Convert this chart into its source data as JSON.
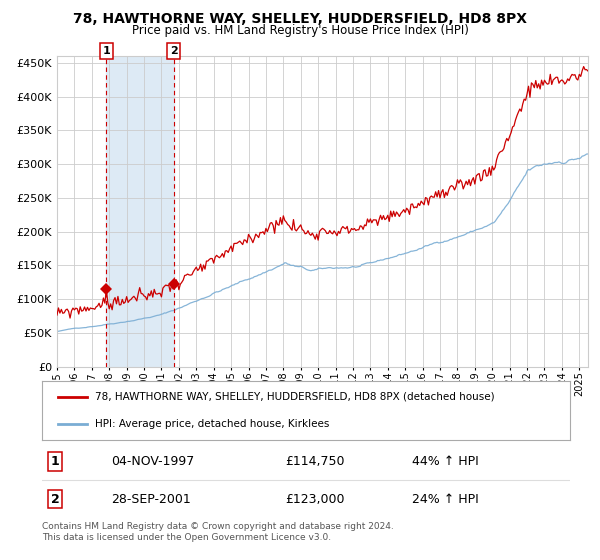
{
  "title": "78, HAWTHORNE WAY, SHELLEY, HUDDERSFIELD, HD8 8PX",
  "subtitle": "Price paid vs. HM Land Registry's House Price Index (HPI)",
  "legend_line1": "78, HAWTHORNE WAY, SHELLEY, HUDDERSFIELD, HD8 8PX (detached house)",
  "legend_line2": "HPI: Average price, detached house, Kirklees",
  "sale1_date": "04-NOV-1997",
  "sale1_price": 114750,
  "sale1_hpi": "44% ↑ HPI",
  "sale2_date": "28-SEP-2001",
  "sale2_price": 123000,
  "sale2_hpi": "24% ↑ HPI",
  "footer_line1": "Contains HM Land Registry data © Crown copyright and database right 2024.",
  "footer_line2": "This data is licensed under the Open Government Licence v3.0.",
  "red_color": "#cc0000",
  "blue_color": "#7aadd4",
  "bg_shaded": "#ddeaf5",
  "grid_color": "#cccccc",
  "ylim": [
    0,
    460000
  ],
  "yticks": [
    0,
    50000,
    100000,
    150000,
    200000,
    250000,
    300000,
    350000,
    400000,
    450000
  ],
  "sale1_year": 1997.83,
  "sale2_year": 2001.71
}
